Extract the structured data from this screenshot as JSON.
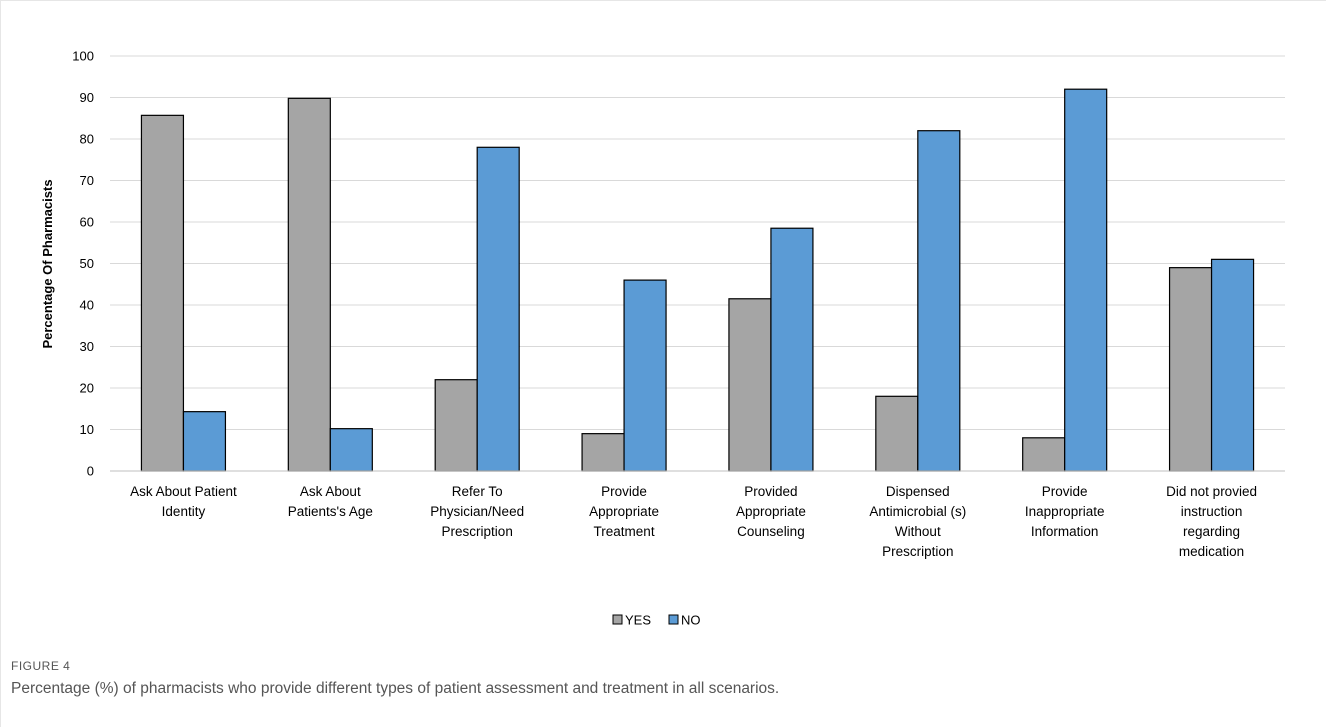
{
  "figure": {
    "label": "FIGURE 4",
    "caption": "Percentage (%) of pharmacists who provide different types of patient assessment and treatment in all scenarios."
  },
  "colors": {
    "yes": "#a5a5a5",
    "no": "#5b9bd5",
    "gridline": "#d9d9d9",
    "bar_border": "#000000"
  },
  "chart_data": {
    "type": "bar",
    "title": "",
    "xlabel": "",
    "ylabel": "Percentage Of Pharmacists",
    "ylim": [
      0,
      100
    ],
    "yticks": [
      0,
      10,
      20,
      30,
      40,
      50,
      60,
      70,
      80,
      90,
      100
    ],
    "grid": true,
    "legend_position": "bottom",
    "categories": [
      [
        "Ask About Patient",
        "Identity"
      ],
      [
        "Ask About",
        "Patients's Age"
      ],
      [
        "Refer To",
        "Physician/Need",
        "Prescription"
      ],
      [
        "Provide",
        "Appropriate",
        "Treatment"
      ],
      [
        "Provided",
        "Appropriate",
        "Counseling"
      ],
      [
        "Dispensed",
        "Antimicrobial (s)",
        "Without",
        "Prescription"
      ],
      [
        "Provide",
        "Inappropriate",
        "Information"
      ],
      [
        "Did not provied",
        "instruction",
        "regarding",
        "medication"
      ]
    ],
    "series": [
      {
        "name": "YES",
        "values": [
          85.7,
          89.8,
          22,
          9,
          41.5,
          18,
          8,
          49
        ]
      },
      {
        "name": "NO",
        "values": [
          14.3,
          10.2,
          78,
          46,
          58.5,
          82,
          92,
          51
        ]
      }
    ]
  }
}
